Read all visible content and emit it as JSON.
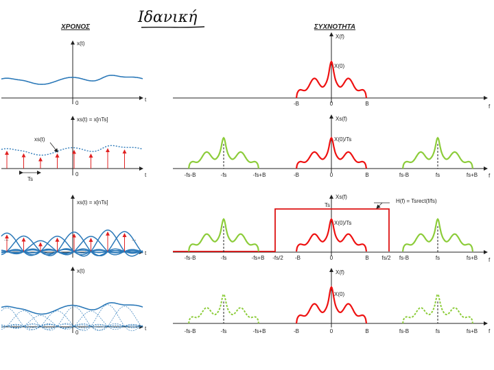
{
  "headers": {
    "time": "ΧΡΟΝΟΣ",
    "frequency": "ΣΥΧΝΟΤΗΤΑ"
  },
  "handwritten_title": "Ιδανική",
  "colors": {
    "axis": "#222222",
    "time_signal": "#2a78b8",
    "sample": "#e02020",
    "spectrum_main": "#ee1111",
    "spectrum_replica": "#8ccc3a",
    "filter": "#dd1111"
  },
  "rows": [
    {
      "time": {
        "ylabel": "x(t)",
        "xlabel": "t",
        "origin": "0"
      },
      "freq": {
        "ylabel": "X(f)",
        "xlabel": "f",
        "peak": "X(0)",
        "ticks": [
          "-B",
          "0",
          "B"
        ]
      }
    },
    {
      "time": {
        "ylabel": "xs(t) = x[nTs]",
        "xlabel": "t",
        "origin": "0",
        "signal_label": "xs(t)",
        "period_label": "Ts"
      },
      "freq": {
        "ylabel": "Xs(f)",
        "xlabel": "f",
        "peak": "X(0)/Ts",
        "ticks": [
          "-fs-B",
          "-fs",
          "-fs+B",
          "-B",
          "0",
          "B",
          "fs-B",
          "fs",
          "fs+B"
        ]
      }
    },
    {
      "time": {
        "ylabel": "xs(t) = x[nTs]",
        "xlabel": "t",
        "ellipsis": "..."
      },
      "freq": {
        "ylabel": "Xs(f)",
        "xlabel": "f",
        "peak": "X(0)/Ts",
        "filter_height": "Ts",
        "filter_label": "H(f) = Tsrect(f/fs)",
        "ticks": [
          "-fs-B",
          "-fs",
          "-fs+B",
          "-fs/2",
          "-B",
          "0",
          "B",
          "fs/2",
          "fs-B",
          "fs",
          "fs+B"
        ]
      }
    },
    {
      "time": {
        "ylabel": "x(t)",
        "xlabel": "t",
        "origin": "0"
      },
      "freq": {
        "ylabel": "X(f)",
        "xlabel": "f",
        "peak": "X(0)",
        "ticks": [
          "-fs-B",
          "-fs",
          "-fs+B",
          "-B",
          "0",
          "B",
          "fs-B",
          "fs",
          "fs+B"
        ]
      }
    }
  ]
}
